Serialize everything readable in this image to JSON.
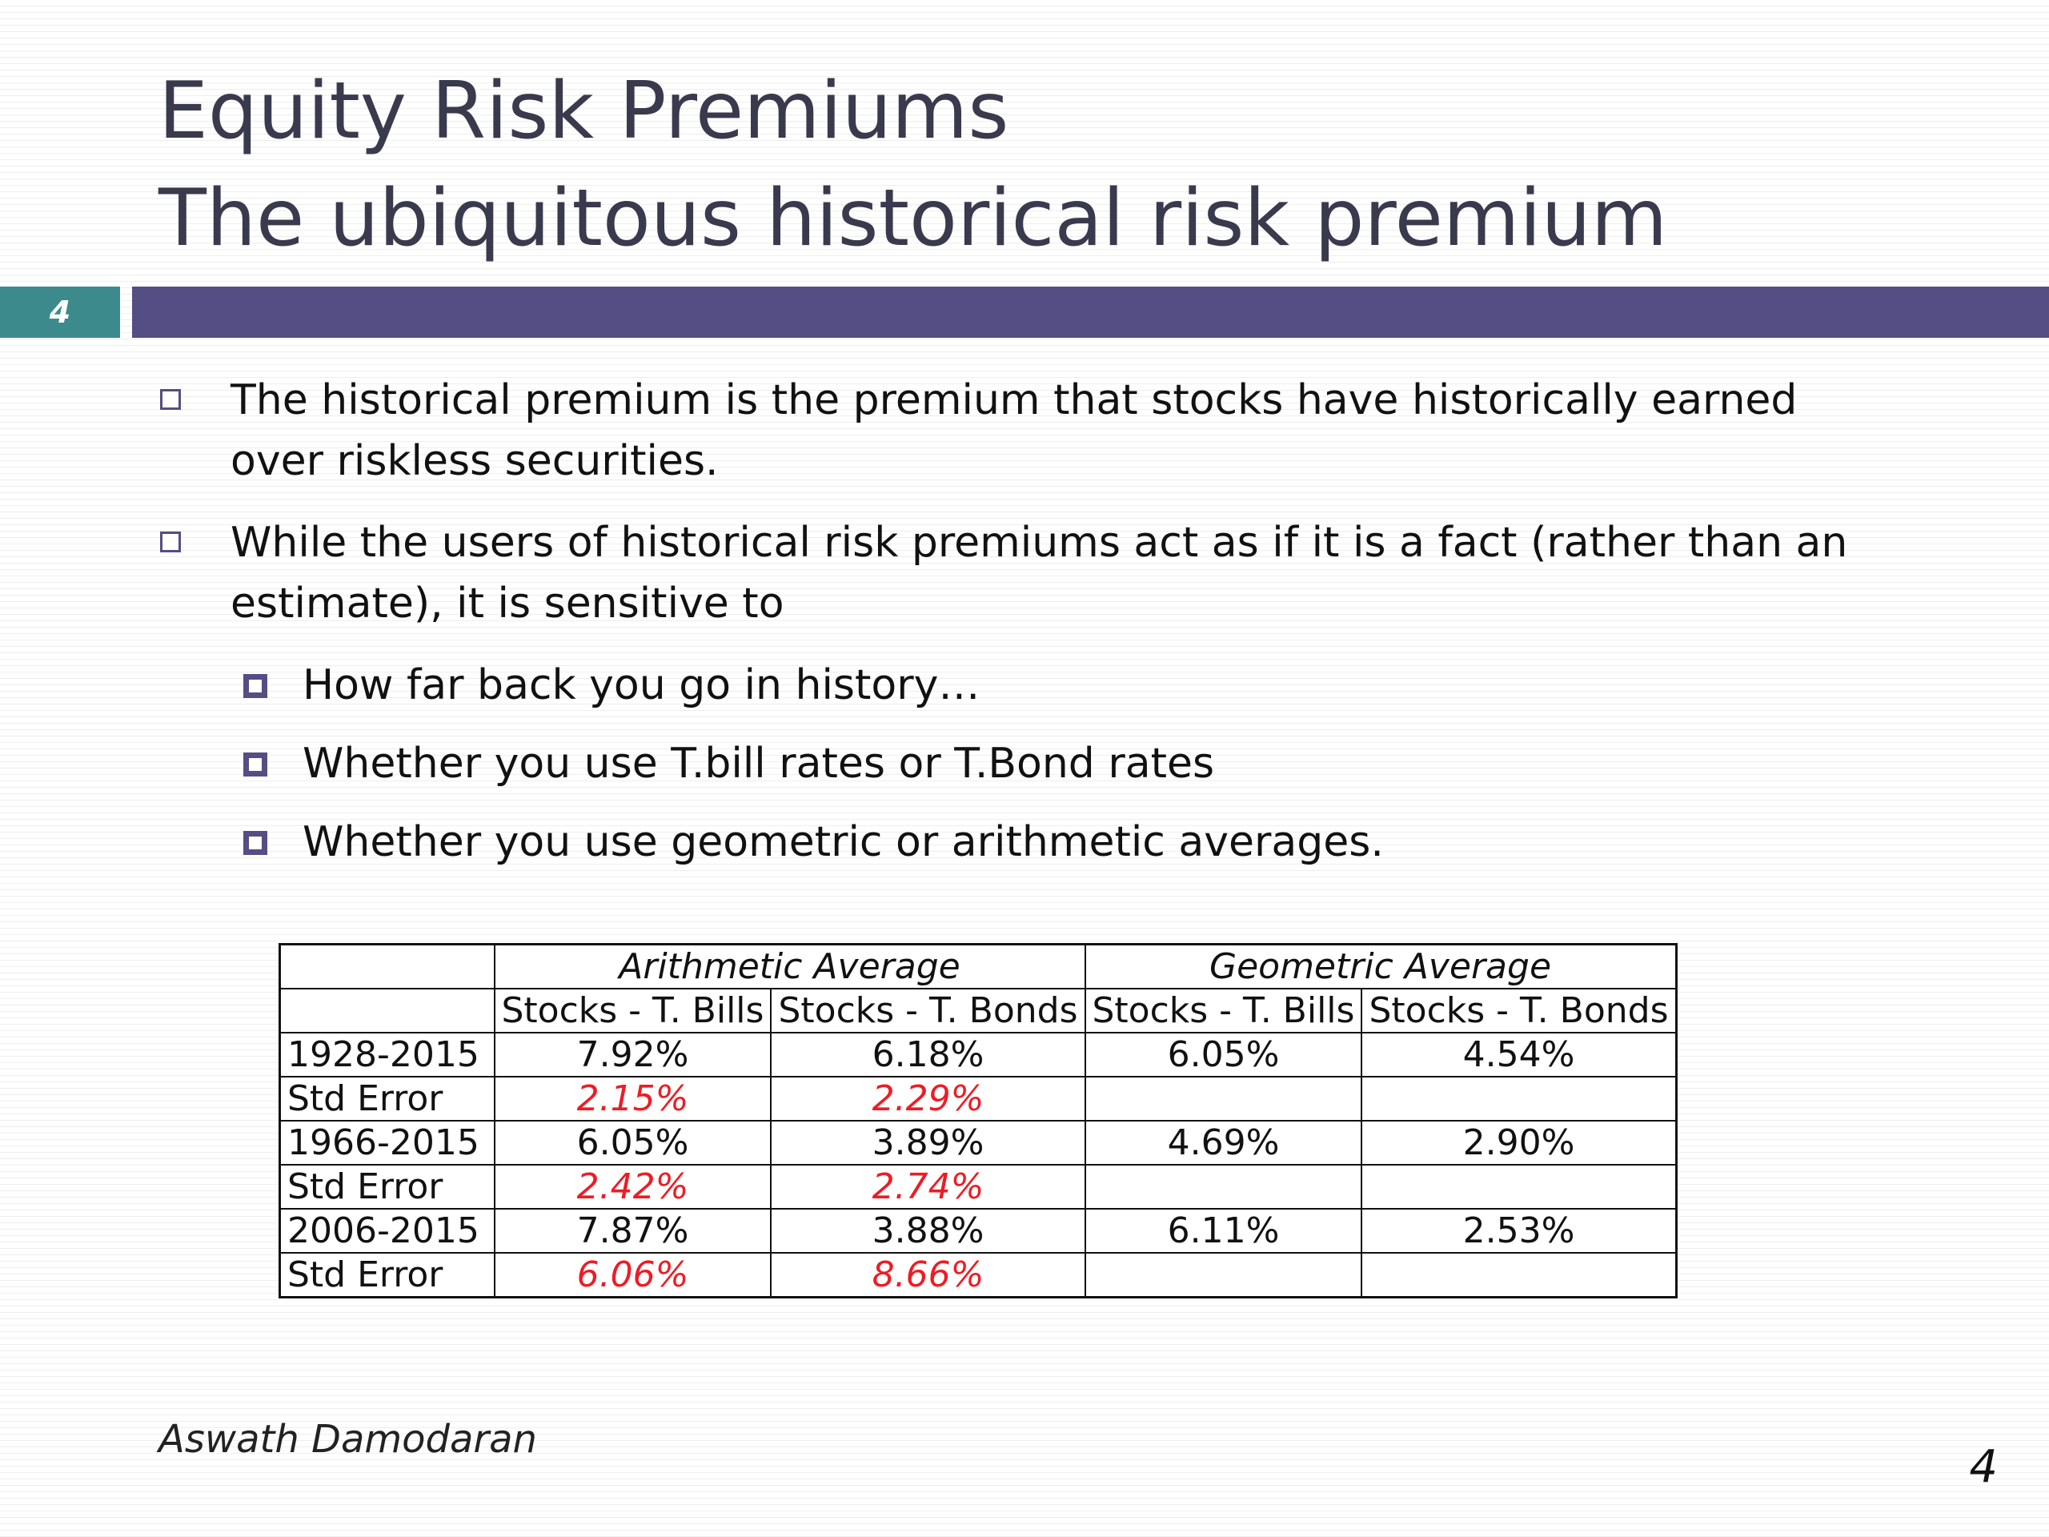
{
  "slide": {
    "title_line1": "Equity Risk Premiums",
    "title_line2": "The ubiquitous historical risk premium",
    "number": "4"
  },
  "bullets": [
    "The historical premium is the premium that stocks have historically earned over riskless securities.",
    "While the users of historical risk premiums act as if it is a fact (rather than an estimate), it is sensitive to"
  ],
  "sub_bullets": [
    "How far back you go in history…",
    "Whether you use T.bill rates or T.Bond rates",
    "Whether you use geometric or arithmetic averages."
  ],
  "table": {
    "group_headers": [
      "Arithmetic Average",
      "Geometric Average"
    ],
    "column_headers": [
      "Stocks - T. Bills",
      "Stocks - T. Bonds",
      "Stocks - T. Bills",
      "Stocks - T. Bonds"
    ],
    "rows": [
      {
        "label": "1928-2015",
        "values": [
          "7.92%",
          "6.18%",
          "6.05%",
          "4.54%"
        ]
      },
      {
        "label": "Std Error",
        "values": [
          "2.15%",
          "2.29%",
          "",
          ""
        ]
      },
      {
        "label": "1966-2015",
        "values": [
          "6.05%",
          "3.89%",
          "4.69%",
          "2.90%"
        ]
      },
      {
        "label": "Std Error",
        "values": [
          "2.42%",
          "2.74%",
          "",
          ""
        ]
      },
      {
        "label": "2006-2015",
        "values": [
          "7.87%",
          "3.88%",
          "6.11%",
          "2.53%"
        ]
      },
      {
        "label": "Std Error",
        "values": [
          "6.06%",
          "8.66%",
          "",
          ""
        ]
      }
    ],
    "error_color": "#ee1c24"
  },
  "footer": {
    "author": "Aswath Damodaran",
    "page_number": "4"
  },
  "colors": {
    "title_bar": "#544e84",
    "number_box": "#3d8a8d",
    "title_text": "#3a3a4e"
  }
}
